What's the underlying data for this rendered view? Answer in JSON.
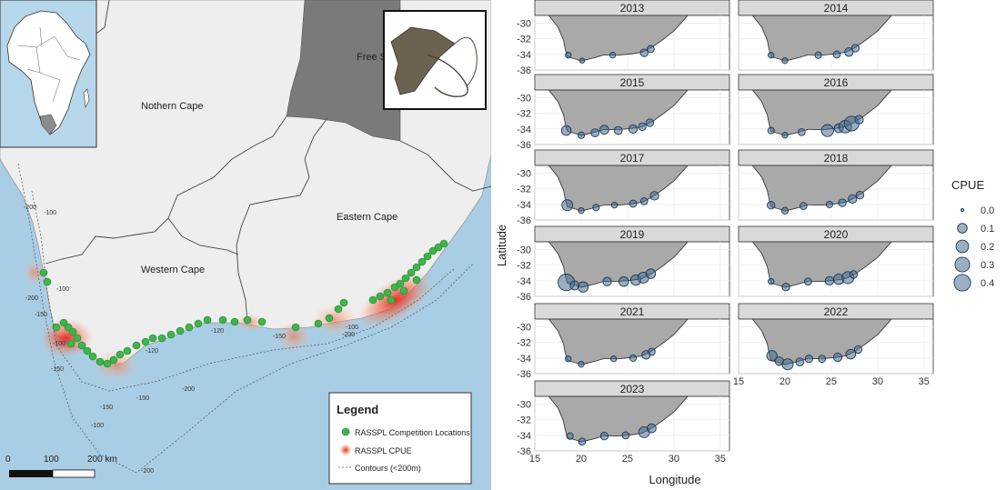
{
  "map": {
    "provinces": {
      "free_state": "Free State",
      "northern_cape": "Nothern Cape",
      "eastern_cape": "Eastern Cape",
      "western_cape": "Western Cape"
    },
    "contour_labels": [
      "-200",
      "-100",
      "-200",
      "-150",
      "-100",
      "-150",
      "-100",
      "-120",
      "-120",
      "-150",
      "-100",
      "-200",
      "-150",
      "-150",
      "-100",
      "-200",
      "-200"
    ],
    "legend": {
      "title": "Legend",
      "items": [
        "RASSPL Competition Locations",
        "RASSPL CPUE",
        "Contours (<200m)"
      ]
    },
    "scalebar": {
      "labels": [
        "0",
        "100",
        "200 km"
      ]
    },
    "colors": {
      "ocean": "#a8cde4",
      "land": "#eeeeee",
      "other_country": "#7a7a7a",
      "location": "#3cb54a",
      "cpue": "#e63a2e"
    }
  },
  "chart_data": {
    "type": "scatter",
    "xlabel": "Longitude",
    "ylabel": "Latitude",
    "xlim": [
      15,
      36
    ],
    "ylim": [
      -36,
      -29
    ],
    "xticks": [
      "15",
      "20",
      "25",
      "30",
      "35"
    ],
    "yticks": [
      "-30",
      "-32",
      "-34",
      "-36"
    ],
    "legend": {
      "title": "CPUE",
      "values": [
        0.0,
        0.1,
        0.2,
        0.3,
        0.4
      ],
      "labels": [
        "0.0",
        "0.1",
        "0.2",
        "0.3",
        "0.4"
      ]
    },
    "panels": [
      {
        "year": "2013",
        "points": [
          [
            18.6,
            -34.1,
            0.02
          ],
          [
            20.1,
            -34.8,
            0.01
          ],
          [
            23.4,
            -34.1,
            0.02
          ],
          [
            26.8,
            -33.8,
            0.05
          ],
          [
            27.5,
            -33.3,
            0.04
          ]
        ]
      },
      {
        "year": "2014",
        "points": [
          [
            18.5,
            -34.1,
            0.02
          ],
          [
            20.0,
            -34.8,
            0.02
          ],
          [
            23.6,
            -34.1,
            0.03
          ],
          [
            25.6,
            -34.0,
            0.04
          ],
          [
            26.9,
            -33.7,
            0.07
          ],
          [
            27.6,
            -33.2,
            0.05
          ]
        ]
      },
      {
        "year": "2015",
        "points": [
          [
            18.4,
            -34.2,
            0.1
          ],
          [
            20.0,
            -34.8,
            0.03
          ],
          [
            21.5,
            -34.5,
            0.06
          ],
          [
            22.5,
            -34.1,
            0.08
          ],
          [
            24.0,
            -34.2,
            0.06
          ],
          [
            25.6,
            -34.0,
            0.07
          ],
          [
            26.6,
            -33.7,
            0.05
          ],
          [
            27.4,
            -33.2,
            0.05
          ]
        ]
      },
      {
        "year": "2016",
        "points": [
          [
            18.5,
            -34.2,
            0.03
          ],
          [
            20.0,
            -34.8,
            0.02
          ],
          [
            21.8,
            -34.4,
            0.04
          ],
          [
            24.6,
            -34.2,
            0.18
          ],
          [
            25.8,
            -33.9,
            0.08
          ],
          [
            26.5,
            -33.7,
            0.2
          ],
          [
            27.2,
            -33.3,
            0.3
          ],
          [
            28.0,
            -32.8,
            0.07
          ]
        ]
      },
      {
        "year": "2017",
        "points": [
          [
            18.5,
            -34.1,
            0.14
          ],
          [
            20.0,
            -34.8,
            0.02
          ],
          [
            21.6,
            -34.4,
            0.03
          ],
          [
            23.6,
            -34.1,
            0.02
          ],
          [
            25.6,
            -33.9,
            0.04
          ],
          [
            26.8,
            -33.6,
            0.04
          ],
          [
            27.9,
            -32.9,
            0.07
          ]
        ]
      },
      {
        "year": "2018",
        "points": [
          [
            18.5,
            -34.1,
            0.05
          ],
          [
            20.0,
            -34.8,
            0.03
          ],
          [
            22.0,
            -34.2,
            0.04
          ],
          [
            24.8,
            -34.0,
            0.03
          ],
          [
            26.2,
            -33.8,
            0.05
          ],
          [
            27.3,
            -33.3,
            0.07
          ],
          [
            28.1,
            -32.8,
            0.05
          ]
        ]
      },
      {
        "year": "2019",
        "points": [
          [
            18.4,
            -34.2,
            0.4
          ],
          [
            19.3,
            -34.6,
            0.08
          ],
          [
            20.2,
            -34.8,
            0.12
          ],
          [
            22.8,
            -34.1,
            0.07
          ],
          [
            24.6,
            -34.1,
            0.1
          ],
          [
            25.9,
            -33.9,
            0.12
          ],
          [
            26.7,
            -33.6,
            0.14
          ],
          [
            27.5,
            -33.1,
            0.1
          ]
        ]
      },
      {
        "year": "2020",
        "points": [
          [
            18.5,
            -34.1,
            0.02
          ],
          [
            20.1,
            -34.8,
            0.05
          ],
          [
            22.5,
            -34.1,
            0.04
          ],
          [
            24.8,
            -34.0,
            0.07
          ],
          [
            25.8,
            -33.8,
            0.12
          ],
          [
            26.8,
            -33.6,
            0.18
          ],
          [
            27.4,
            -33.2,
            0.05
          ]
        ]
      },
      {
        "year": "2021",
        "points": [
          [
            18.6,
            -34.1,
            0.02
          ],
          [
            20.0,
            -34.8,
            0.02
          ],
          [
            23.5,
            -34.1,
            0.02
          ],
          [
            25.6,
            -34.0,
            0.03
          ],
          [
            27.0,
            -33.6,
            0.07
          ],
          [
            27.6,
            -33.2,
            0.04
          ]
        ]
      },
      {
        "year": "2022",
        "points": [
          [
            18.6,
            -33.7,
            0.12
          ],
          [
            19.4,
            -34.4,
            0.07
          ],
          [
            20.3,
            -34.8,
            0.14
          ],
          [
            21.6,
            -34.5,
            0.06
          ],
          [
            22.6,
            -34.1,
            0.05
          ],
          [
            24.0,
            -34.1,
            0.04
          ],
          [
            25.7,
            -33.9,
            0.07
          ],
          [
            27.1,
            -33.5,
            0.1
          ],
          [
            27.9,
            -32.9,
            0.05
          ]
        ]
      },
      {
        "year": "2023",
        "points": [
          [
            18.8,
            -34.1,
            0.03
          ],
          [
            20.1,
            -34.8,
            0.04
          ],
          [
            22.5,
            -34.1,
            0.05
          ],
          [
            24.8,
            -34.0,
            0.04
          ],
          [
            26.8,
            -33.6,
            0.14
          ],
          [
            27.6,
            -33.1,
            0.08
          ]
        ]
      }
    ]
  }
}
